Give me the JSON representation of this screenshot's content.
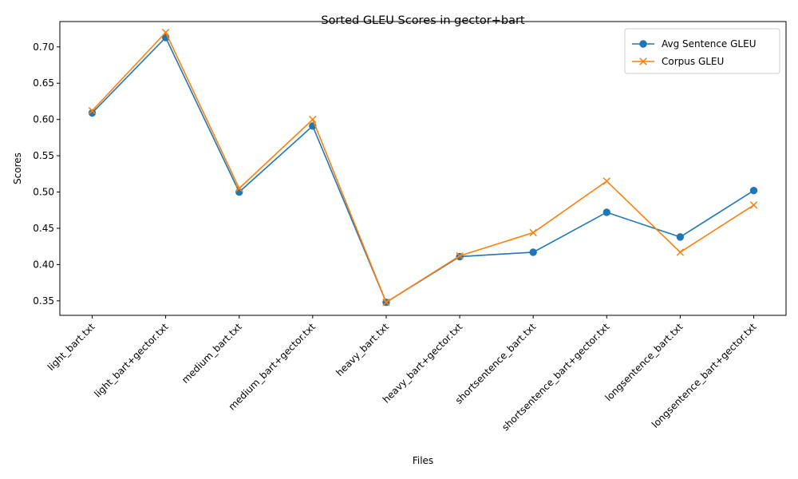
{
  "chart_data": {
    "type": "line",
    "title": "Sorted GLEU Scores in gector+bart",
    "xlabel": "Files",
    "ylabel": "Scores",
    "categories": [
      "light_bart.txt",
      "light_bart+gector.txt",
      "medium_bart.txt",
      "medium_bart+gector.txt",
      "heavy_bart.txt",
      "heavy_bart+gector.txt",
      "shortsentence_bart.txt",
      "shortsentence_bart+gector.txt",
      "longsentence_bart.txt",
      "longsentence_bart+gector.txt"
    ],
    "series": [
      {
        "name": "Avg Sentence GLEU",
        "marker": "circle",
        "color": "#1f77b4",
        "values": [
          0.609,
          0.713,
          0.5,
          0.591,
          0.348,
          0.411,
          0.417,
          0.472,
          0.438,
          0.502
        ]
      },
      {
        "name": "Corpus GLEU",
        "marker": "x",
        "color": "#ff7f0e",
        "values": [
          0.612,
          0.72,
          0.505,
          0.6,
          0.348,
          0.412,
          0.444,
          0.515,
          0.417,
          0.482
        ]
      }
    ],
    "ylim": [
      0.33,
      0.735
    ],
    "yticks": [
      "0.35",
      "0.40",
      "0.45",
      "0.50",
      "0.55",
      "0.60",
      "0.65",
      "0.70"
    ],
    "grid": false,
    "legend_position": "top-right"
  }
}
